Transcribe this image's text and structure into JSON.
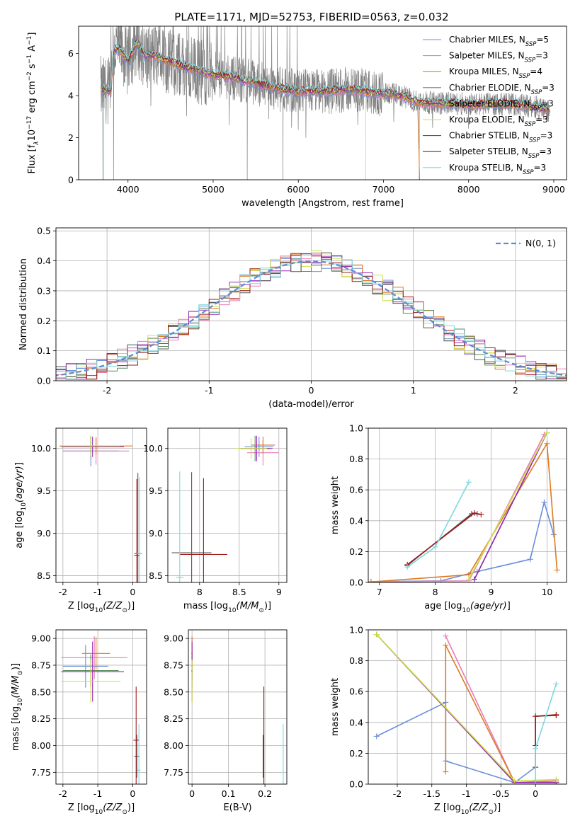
{
  "figure_title": "PLATE=1171, MJD=52753, FIBERID=0563, z=0.032",
  "colors": {
    "Chabrier MILES": "#6a8fd8",
    "Salpeter MILES": "#e87db8",
    "Kroupa MILES": "#de7a22",
    "Chabrier ELODIE": "#5b8a5b",
    "Salpeter ELODIE": "#9a2ab8",
    "Kroupa ELODIE": "#cfe04a",
    "Chabrier STELIB": "#555555",
    "Salpeter STELIB": "#a01818",
    "Kroupa STELIB": "#7dd8e0",
    "data": "#808080",
    "normal": "#5b8ad8"
  },
  "chart_data": [
    {
      "id": "spectrum",
      "type": "line",
      "xlabel": "wavelength [Angstrom, rest frame]",
      "ylabel": "Flux [f_λ 10^-17 erg cm^-2 s^-1 A^-1]",
      "xlim": [
        3420,
        9150
      ],
      "ylim": [
        0,
        7.3
      ],
      "xticks": [
        4000,
        5000,
        6000,
        7000,
        8000,
        9000
      ],
      "yticks": [
        0,
        2,
        4,
        6
      ],
      "legend_position": "top-right",
      "legend": [
        {
          "model": "Chabrier MILES",
          "label": "Chabrier MILES, N",
          "sub": "SSP",
          "suffix": "=5"
        },
        {
          "model": "Salpeter MILES",
          "label": "Salpeter MILES, N",
          "sub": "SSP",
          "suffix": "=3"
        },
        {
          "model": "Kroupa MILES",
          "label": "Kroupa MILES, N",
          "sub": "SSP",
          "suffix": "=4"
        },
        {
          "model": "Chabrier ELODIE",
          "label": "Chabrier ELODIE, N",
          "sub": "SSP",
          "suffix": "=3"
        },
        {
          "model": "Salpeter ELODIE",
          "label": "Salpeter ELODIE, N",
          "sub": "SSP",
          "suffix": "=3"
        },
        {
          "model": "Kroupa ELODIE",
          "label": "Kroupa ELODIE, N",
          "sub": "SSP",
          "suffix": "=3"
        },
        {
          "model": "Chabrier STELIB",
          "label": "Chabrier STELIB, N",
          "sub": "SSP",
          "suffix": "=3"
        },
        {
          "model": "Salpeter STELIB",
          "label": "Salpeter STELIB, N",
          "sub": "SSP",
          "suffix": "=3"
        },
        {
          "model": "Kroupa STELIB",
          "label": "Kroupa STELIB, N",
          "sub": "SSP",
          "suffix": "=3"
        }
      ],
      "continuum": [
        [
          3680,
          4.3
        ],
        [
          3800,
          4.2
        ],
        [
          3830,
          6.2
        ],
        [
          3900,
          6.2
        ],
        [
          4000,
          5.6
        ],
        [
          4100,
          6.5
        ],
        [
          4200,
          5.9
        ],
        [
          4300,
          5.9
        ],
        [
          4500,
          5.6
        ],
        [
          4800,
          5.2
        ],
        [
          5000,
          5.0
        ],
        [
          5200,
          4.9
        ],
        [
          5500,
          4.6
        ],
        [
          5800,
          4.3
        ],
        [
          6000,
          4.2
        ],
        [
          6300,
          4.2
        ],
        [
          6600,
          4.3
        ],
        [
          6800,
          4.2
        ],
        [
          7000,
          4.1
        ],
        [
          7200,
          4.0
        ],
        [
          7400,
          3.7
        ],
        [
          7600,
          3.65
        ],
        [
          8000,
          3.6
        ],
        [
          8500,
          3.6
        ],
        [
          8800,
          3.45
        ],
        [
          8950,
          3.3
        ]
      ]
    },
    {
      "id": "residuals",
      "type": "histogram",
      "xlabel": "(data-model)/error",
      "ylabel": "Normed distribution",
      "xlim": [
        -2.5,
        2.5
      ],
      "ylim": [
        0,
        0.51
      ],
      "xticks": [
        -2,
        -1,
        0,
        1,
        2
      ],
      "yticks": [
        0.0,
        0.1,
        0.2,
        0.3,
        0.4,
        0.5
      ],
      "bin_width": 0.1,
      "legend_position": "top-right",
      "legend": [
        {
          "label": "N(0, 1)",
          "style": "dashed"
        }
      ]
    },
    {
      "id": "age-vs-Z",
      "type": "scatter",
      "xlabel": "Z [log10(Z/Z⊙)]",
      "ylabel": "age  [log10(age/yr)]",
      "xlim": [
        -2.2,
        0.4
      ],
      "ylim": [
        8.42,
        10.24
      ],
      "xticks": [
        -2,
        -1,
        0
      ],
      "yticks": [
        8.5,
        9.0,
        9.5,
        10.0
      ],
      "points": [
        {
          "model": "Chabrier MILES",
          "x": -1.2,
          "xerr": 0.8,
          "y": 9.97,
          "yerr": 0.18
        },
        {
          "model": "Salpeter MILES",
          "x": -1.05,
          "xerr": 0.95,
          "y": 9.97,
          "yerr": 0.16
        },
        {
          "model": "Kroupa MILES",
          "x": -1.05,
          "xerr": 1.05,
          "y": 10.03,
          "yerr": 0.1
        },
        {
          "model": "Chabrier ELODIE",
          "x": -1.2,
          "xerr": 0.85,
          "y": 10.02,
          "yerr": 0.12
        },
        {
          "model": "Salpeter ELODIE",
          "x": -1.15,
          "xerr": 0.9,
          "y": 10.02,
          "yerr": 0.12
        },
        {
          "model": "Kroupa ELODIE",
          "x": -1.2,
          "xerr": 0.85,
          "y": 10.03,
          "yerr": 0.12
        },
        {
          "model": "Chabrier STELIB",
          "x": 0.15,
          "xerr": 0.1,
          "y": 8.76,
          "yerr": 0.95
        },
        {
          "model": "Salpeter STELIB",
          "x": 0.12,
          "xerr": 0.08,
          "y": 8.74,
          "yerr": 0.9
        },
        {
          "model": "Kroupa STELIB",
          "x": 0.2,
          "xerr": 0.08,
          "y": 8.76,
          "yerr": 0.9
        }
      ]
    },
    {
      "id": "age-vs-mass",
      "type": "scatter",
      "xlabel": "mass [log10(M/M⊙)]",
      "ylabel": "",
      "xlim": [
        7.6,
        9.1
      ],
      "ylim": [
        8.42,
        10.24
      ],
      "xticks": [
        8.0,
        8.5,
        9.0
      ],
      "yticks": [
        8.5,
        9.0,
        9.5,
        10.0
      ],
      "points": [
        {
          "model": "Chabrier MILES",
          "x": 8.75,
          "xerr": 0.18,
          "y": 10.02,
          "yerr": 0.12
        },
        {
          "model": "Salpeter MILES",
          "x": 8.8,
          "xerr": 0.2,
          "y": 9.95,
          "yerr": 0.15
        },
        {
          "model": "Kroupa MILES",
          "x": 8.8,
          "xerr": 0.15,
          "y": 10.04,
          "yerr": 0.1
        },
        {
          "model": "Chabrier ELODIE",
          "x": 8.7,
          "xerr": 0.2,
          "y": 10.0,
          "yerr": 0.15
        },
        {
          "model": "Salpeter ELODIE",
          "x": 8.72,
          "xerr": 0.2,
          "y": 10.0,
          "yerr": 0.15
        },
        {
          "model": "Kroupa ELODIE",
          "x": 8.65,
          "xerr": 0.2,
          "y": 10.0,
          "yerr": 0.12
        },
        {
          "model": "Chabrier STELIB",
          "x": 7.9,
          "xerr": 0.25,
          "y": 8.77,
          "yerr": 0.95
        },
        {
          "model": "Salpeter STELIB",
          "x": 8.05,
          "xerr": 0.3,
          "y": 8.75,
          "yerr": 0.9
        },
        {
          "model": "Kroupa STELIB",
          "x": 7.75,
          "xerr": 0.05,
          "y": 8.48,
          "yerr": 1.25
        }
      ]
    },
    {
      "id": "massweight-vs-age",
      "type": "line",
      "xlabel": "age  [log10(age/yr)]",
      "ylabel": "mass weight",
      "xlim": [
        6.8,
        10.35
      ],
      "ylim": [
        0,
        1.0
      ],
      "xticks": [
        7,
        8,
        9,
        10
      ],
      "yticks": [
        0.0,
        0.2,
        0.4,
        0.6,
        0.8,
        1.0
      ],
      "series": [
        {
          "model": "Chabrier MILES",
          "points": [
            [
              6.85,
              0.005
            ],
            [
              8.1,
              0.01
            ],
            [
              8.75,
              0.07
            ],
            [
              9.7,
              0.15
            ],
            [
              9.95,
              0.52
            ],
            [
              10.12,
              0.31
            ]
          ]
        },
        {
          "model": "Salpeter MILES",
          "points": [
            [
              6.85,
              0.003
            ],
            [
              8.6,
              0.01
            ],
            [
              9.95,
              0.96
            ]
          ]
        },
        {
          "model": "Kroupa MILES",
          "points": [
            [
              6.85,
              0.003
            ],
            [
              8.6,
              0.05
            ],
            [
              10.0,
              0.9
            ],
            [
              10.18,
              0.08
            ]
          ]
        },
        {
          "model": "Chabrier ELODIE",
          "points": [
            [
              8.7,
              0.02
            ],
            [
              10.0,
              0.97
            ]
          ]
        },
        {
          "model": "Salpeter ELODIE",
          "points": [
            [
              8.7,
              0.02
            ],
            [
              10.0,
              0.97
            ]
          ]
        },
        {
          "model": "Kroupa ELODIE",
          "points": [
            [
              8.6,
              0.02
            ],
            [
              10.0,
              0.97
            ]
          ]
        },
        {
          "model": "Chabrier STELIB",
          "points": [
            [
              7.5,
              0.11
            ],
            [
              8.65,
              0.445
            ],
            [
              8.75,
              0.445
            ]
          ]
        },
        {
          "model": "Salpeter STELIB",
          "points": [
            [
              7.5,
              0.115
            ],
            [
              8.7,
              0.45
            ],
            [
              8.82,
              0.44
            ]
          ]
        },
        {
          "model": "Kroupa STELIB",
          "points": [
            [
              7.5,
              0.1
            ],
            [
              8.0,
              0.23
            ],
            [
              8.6,
              0.65
            ]
          ]
        }
      ]
    },
    {
      "id": "mass-vs-Z",
      "type": "scatter",
      "xlabel": "Z [log10(Z/Z⊙)]",
      "ylabel": "mass [log10(M/M⊙)]",
      "xlim": [
        -2.2,
        0.4
      ],
      "ylim": [
        7.64,
        9.08
      ],
      "xticks": [
        -2,
        -1,
        0
      ],
      "yticks": [
        7.75,
        8.0,
        8.25,
        8.5,
        8.75,
        9.0
      ],
      "points": [
        {
          "model": "Chabrier MILES",
          "x": -1.35,
          "xerr": 0.65,
          "y": 8.74,
          "yerr": 0.2
        },
        {
          "model": "Salpeter MILES",
          "x": -1.1,
          "xerr": 0.95,
          "y": 8.82,
          "yerr": 0.2
        },
        {
          "model": "Kroupa MILES",
          "x": -1.05,
          "xerr": 0.4,
          "y": 8.86,
          "yerr": 0.15
        },
        {
          "model": "Chabrier ELODIE",
          "x": -1.2,
          "xerr": 0.8,
          "y": 8.7,
          "yerr": 0.15
        },
        {
          "model": "Salpeter ELODIE",
          "x": -1.15,
          "xerr": 0.9,
          "y": 8.69,
          "yerr": 0.28
        },
        {
          "model": "Kroupa ELODIE",
          "x": -1.2,
          "xerr": 0.85,
          "y": 8.6,
          "yerr": 0.2
        },
        {
          "model": "Chabrier STELIB",
          "x": 0.12,
          "xerr": 0.08,
          "y": 7.9,
          "yerr": 0.2
        },
        {
          "model": "Salpeter STELIB",
          "x": 0.1,
          "xerr": 0.08,
          "y": 8.05,
          "yerr": 0.5
        },
        {
          "model": "Kroupa STELIB",
          "x": 0.18,
          "xerr": 0.05,
          "y": 7.77,
          "yerr": 0.43
        }
      ]
    },
    {
      "id": "mass-vs-ebv",
      "type": "scatter",
      "xlabel": "E(B-V)",
      "ylabel": "",
      "xlim": [
        -0.01,
        0.26
      ],
      "ylim": [
        7.64,
        9.08
      ],
      "xticks": [
        0.0,
        0.1,
        0.2
      ],
      "yticks": [
        7.75,
        8.0,
        8.25,
        8.5,
        8.75,
        9.0
      ],
      "points": [
        {
          "model": "Chabrier MILES",
          "x": 0.0,
          "xerr": 0.002,
          "y": 8.74,
          "yerr": 0.2
        },
        {
          "model": "Salpeter MILES",
          "x": 0.0,
          "xerr": 0.002,
          "y": 8.82,
          "yerr": 0.2
        },
        {
          "model": "Kroupa MILES",
          "x": 0.0,
          "xerr": 0.002,
          "y": 8.86,
          "yerr": 0.15
        },
        {
          "model": "Chabrier ELODIE",
          "x": 0.0,
          "xerr": 0.002,
          "y": 8.7,
          "yerr": 0.15
        },
        {
          "model": "Salpeter ELODIE",
          "x": 0.0,
          "xerr": 0.002,
          "y": 8.69,
          "yerr": 0.28
        },
        {
          "model": "Kroupa ELODIE",
          "x": 0.0,
          "xerr": 0.002,
          "y": 8.6,
          "yerr": 0.2
        },
        {
          "model": "Chabrier STELIB",
          "x": 0.195,
          "xerr": 0.001,
          "y": 7.9,
          "yerr": 0.2
        },
        {
          "model": "Salpeter STELIB",
          "x": 0.197,
          "xerr": 0.001,
          "y": 8.05,
          "yerr": 0.5
        },
        {
          "model": "Kroupa STELIB",
          "x": 0.25,
          "xerr": 0.001,
          "y": 7.77,
          "yerr": 0.43
        }
      ]
    },
    {
      "id": "massweight-vs-Z",
      "type": "line",
      "xlabel": "Z [log10(Z/Z⊙)]",
      "ylabel": "mass weight",
      "xlim": [
        -2.42,
        0.45
      ],
      "ylim": [
        0,
        1.0
      ],
      "xticks": [
        -2.0,
        -1.5,
        -1.0,
        -0.5,
        0.0
      ],
      "yticks": [
        0.0,
        0.2,
        0.4,
        0.6,
        0.8,
        1.0
      ],
      "series": [
        {
          "model": "Chabrier MILES",
          "points": [
            [
              -2.3,
              0.31
            ],
            [
              -1.3,
              0.53
            ],
            [
              -1.3,
              0.15
            ],
            [
              -0.3,
              0.01
            ],
            [
              0.0,
              0.11
            ]
          ]
        },
        {
          "model": "Salpeter MILES",
          "points": [
            [
              -1.3,
              0.96
            ],
            [
              -0.3,
              0.01
            ],
            [
              0.3,
              0.02
            ]
          ]
        },
        {
          "model": "Kroupa MILES",
          "points": [
            [
              -1.3,
              0.08
            ],
            [
              -1.3,
              0.9
            ],
            [
              -0.3,
              0.01
            ],
            [
              0.3,
              0.02
            ]
          ]
        },
        {
          "model": "Chabrier ELODIE",
          "points": [
            [
              -2.3,
              0.97
            ],
            [
              -0.3,
              0.01
            ],
            [
              0.3,
              0.01
            ]
          ]
        },
        {
          "model": "Salpeter ELODIE",
          "points": [
            [
              -2.3,
              0.97
            ],
            [
              -0.3,
              0.01
            ],
            [
              0.3,
              0.01
            ]
          ]
        },
        {
          "model": "Kroupa ELODIE",
          "points": [
            [
              -2.3,
              0.97
            ],
            [
              -0.3,
              0.02
            ],
            [
              0.3,
              0.03
            ]
          ]
        },
        {
          "model": "Chabrier STELIB",
          "points": [
            [
              0.0,
              0.11
            ],
            [
              0.0,
              0.44
            ],
            [
              0.3,
              0.445
            ]
          ]
        },
        {
          "model": "Salpeter STELIB",
          "points": [
            [
              0.0,
              0.25
            ],
            [
              0.0,
              0.44
            ],
            [
              0.3,
              0.45
            ]
          ]
        },
        {
          "model": "Kroupa STELIB",
          "points": [
            [
              0.0,
              0.02
            ],
            [
              0.0,
              0.23
            ],
            [
              0.3,
              0.65
            ]
          ]
        }
      ]
    }
  ]
}
